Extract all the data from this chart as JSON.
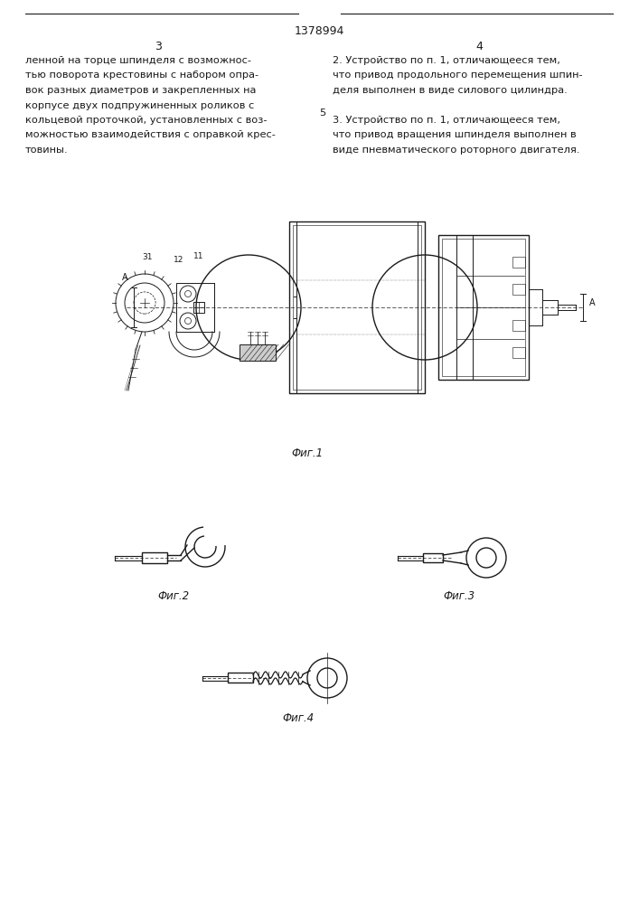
{
  "patent_number": "1378994",
  "page_left_number": "3",
  "page_right_number": "4",
  "text_left": "ленной на торце шпинделя с возможнос-\nтью поворота крестовины с набором опра-\nвок разных диаметров и закрепленных на\nкорпусе двух подпружиненных роликов с\nкольцевой проточкой, установленных с воз-\nможностью взаимодействия с оправкой крес-\nтовины.",
  "text_right_1": "2. Устройство по п. 1, отличающееся тем,\nчто привод продольного перемещения шпин-\nделя выполнен в виде силового цилиндра.",
  "text_right_2": "3. Устройство по п. 1, отличающееся тем,\nчто привод вращения шпинделя выполнен в\nвиде пневматического роторного двигателя.",
  "text_right_number": "5",
  "fig1_caption": "Фиг.1",
  "fig2_caption": "Фиг.2",
  "fig3_caption": "Фиг.3",
  "fig4_caption": "Фиг.4",
  "bg_color": "#ffffff",
  "line_color": "#1a1a1a",
  "text_color": "#1a1a1a"
}
